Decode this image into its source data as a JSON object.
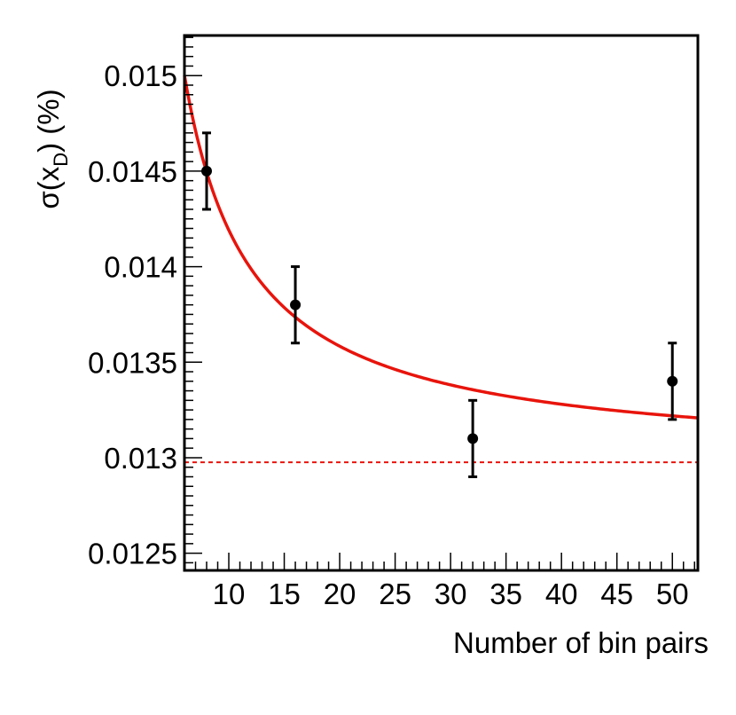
{
  "chart_data": {
    "type": "scatter",
    "xlabel": "Number of bin pairs",
    "ylabel": {
      "main": "σ(x",
      "sub": "D",
      "tail": ") (%)"
    },
    "xlim": [
      6,
      52.3
    ],
    "ylim": [
      0.01241,
      0.01521
    ],
    "x_ticks": [
      10,
      15,
      20,
      25,
      30,
      35,
      40,
      45,
      50
    ],
    "x_tick_labels": [
      "10",
      "15",
      "20",
      "25",
      "30",
      "35",
      "40",
      "45",
      "50"
    ],
    "y_ticks": [
      0.0125,
      0.013,
      0.0135,
      0.014,
      0.0145,
      0.015
    ],
    "y_tick_labels": [
      "0.0125",
      "0.013",
      "0.0135",
      "0.014",
      "0.0145",
      "0.015"
    ],
    "x_minor_step": 1,
    "y_minor_step": 5e-05,
    "points": [
      {
        "x": 8,
        "y": 0.0145,
        "err": 0.0002
      },
      {
        "x": 16,
        "y": 0.0138,
        "err": 0.0002
      },
      {
        "x": 32,
        "y": 0.0131,
        "err": 0.0002
      },
      {
        "x": 50,
        "y": 0.0134,
        "err": 0.0002
      }
    ],
    "fit_curve": {
      "form": "a + b/x",
      "a": 0.012976,
      "b": 0.012152,
      "x_range": [
        6,
        52.3
      ],
      "color": "#e8140c"
    },
    "reference_line": {
      "y": 0.012976,
      "style": "dashed",
      "color": "#e8140c"
    },
    "marker_color": "#000000",
    "grid": false
  }
}
